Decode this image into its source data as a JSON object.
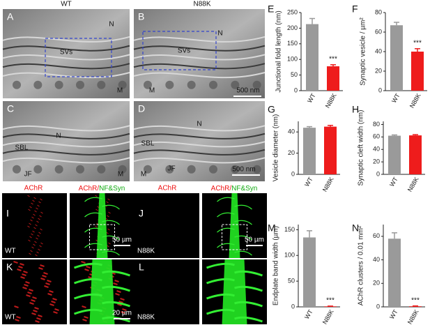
{
  "figure": {
    "columns": [
      "WT",
      "N88K"
    ],
    "em_panels": [
      {
        "label": "A",
        "texts": [
          "N",
          "SVs",
          "M"
        ]
      },
      {
        "label": "B",
        "texts": [
          "N",
          "SVs",
          "M",
          "500 nm"
        ]
      },
      {
        "label": "C",
        "texts": [
          "N",
          "SBL",
          "JF",
          "M"
        ]
      },
      {
        "label": "D",
        "texts": [
          "N",
          "SBL",
          "JF",
          "M",
          "500 nm"
        ]
      }
    ],
    "fluor_headers": {
      "single": "AChR",
      "merge": [
        "AChR/",
        "NF&Syn"
      ]
    },
    "fluor_panels": [
      {
        "label": "I",
        "texts": [
          "WT"
        ]
      },
      {
        "texts": [
          "50 µm"
        ]
      },
      {
        "label": "J",
        "texts": [
          "N88K"
        ]
      },
      {
        "texts": [
          "50 µm"
        ]
      },
      {
        "label": "K",
        "texts": [
          "WT"
        ]
      },
      {
        "texts": [
          "20 µm"
        ]
      },
      {
        "label": "L",
        "texts": [
          "N88K"
        ]
      },
      {
        "texts": []
      }
    ]
  },
  "chart_data": [
    {
      "type": "bar",
      "label": "E",
      "ylabel": "Junctional fold length (nm)",
      "categories": [
        "WT",
        "N88K"
      ],
      "values": [
        213,
        78
      ],
      "errors": [
        18,
        5
      ],
      "colors": [
        "#9a9a9a",
        "#ee1c1c"
      ],
      "ylim": [
        0,
        250
      ],
      "yticks": [
        0,
        50,
        100,
        150,
        200,
        250
      ],
      "annotation": "***"
    },
    {
      "type": "bar",
      "label": "F",
      "ylabel": "Synaptic vesicle / µm²",
      "categories": [
        "WT",
        "N88K"
      ],
      "values": [
        67,
        40
      ],
      "errors": [
        3,
        3
      ],
      "colors": [
        "#9a9a9a",
        "#ee1c1c"
      ],
      "ylim": [
        0,
        80
      ],
      "yticks": [
        0,
        20,
        40,
        60,
        80
      ],
      "annotation": "***"
    },
    {
      "type": "bar",
      "label": "G",
      "ylabel": "Vesicle diameter (nm)",
      "categories": [
        "WT",
        "N88K"
      ],
      "values": [
        44,
        45
      ],
      "errors": [
        1,
        1.2
      ],
      "colors": [
        "#9a9a9a",
        "#ee1c1c"
      ],
      "ylim": [
        0,
        50
      ],
      "yticks": [
        0,
        20,
        40
      ]
    },
    {
      "type": "bar",
      "label": "H",
      "ylabel": "Synaptic cleft width (nm)",
      "categories": [
        "WT",
        "N88K"
      ],
      "values": [
        62,
        62.5
      ],
      "errors": [
        1.2,
        1.2
      ],
      "colors": [
        "#9a9a9a",
        "#ee1c1c"
      ],
      "ylim": [
        0,
        85
      ],
      "yticks": [
        0,
        20,
        40,
        60,
        80
      ]
    },
    {
      "type": "bar",
      "label": "M",
      "ylabel": "Endplate band width (µm)",
      "categories": [
        "WT",
        "N88K"
      ],
      "values": [
        135,
        1
      ],
      "errors": [
        13,
        0.5
      ],
      "colors": [
        "#9a9a9a",
        "#ee1c1c"
      ],
      "ylim": [
        0,
        160
      ],
      "yticks": [
        0,
        50,
        100,
        150
      ],
      "annotation": "***"
    },
    {
      "type": "bar",
      "label": "N",
      "ylabel": "AChR clusters / 0.01 mm²",
      "categories": [
        "WT",
        "N88K"
      ],
      "values": [
        58,
        0.5
      ],
      "errors": [
        5,
        0.3
      ],
      "colors": [
        "#9a9a9a",
        "#ee1c1c"
      ],
      "ylim": [
        0,
        70
      ],
      "yticks": [
        0,
        20,
        40,
        60
      ],
      "annotation": "***"
    }
  ]
}
